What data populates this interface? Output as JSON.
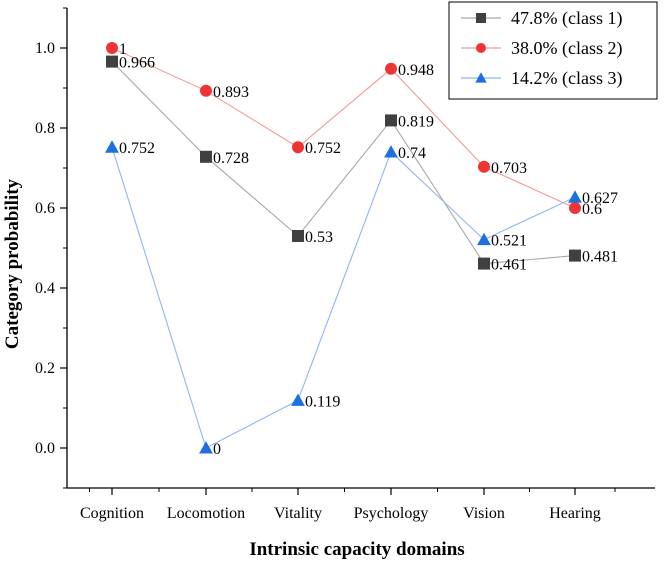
{
  "chart_data": {
    "type": "line",
    "title": "",
    "xlabel": "Intrinsic capacity domains",
    "ylabel": "Category probability",
    "categories": [
      "Cognition",
      "Locomotion",
      "Vitality",
      "Psychology",
      "Vision",
      "Hearing"
    ],
    "ylim": [
      -0.1,
      1.1
    ],
    "yticks": [
      0.0,
      0.2,
      0.4,
      0.6,
      0.8,
      1.0
    ],
    "ytick_labels": [
      "0.0",
      "0.2",
      "0.4",
      "0.6",
      "0.8",
      "1.0"
    ],
    "legend_position": "top-right",
    "grid": false,
    "series": [
      {
        "name": "47.8% (class 1)",
        "marker": "square",
        "color": "#404040",
        "line_color": "#a8a8a8",
        "values": [
          0.966,
          0.728,
          0.53,
          0.819,
          0.461,
          0.481
        ],
        "labels": [
          "0.966",
          "0.728",
          "0.53",
          "0.819",
          "0.461",
          "0.481"
        ]
      },
      {
        "name": "38.0% (class 2)",
        "marker": "circle",
        "color": "#ee3535",
        "line_color": "#f29a9a",
        "values": [
          1,
          0.893,
          0.752,
          0.948,
          0.703,
          0.6
        ],
        "labels": [
          "1",
          "0.893",
          "0.752",
          "0.948",
          "0.703",
          "0.6"
        ]
      },
      {
        "name": "14.2% (class 3)",
        "marker": "triangle",
        "color": "#1f6fe0",
        "line_color": "#8fb6ee",
        "values": [
          0.752,
          0,
          0.119,
          0.74,
          0.521,
          0.627
        ],
        "labels": [
          "0.752",
          "0",
          "0.119",
          "0.74",
          "0.521",
          "0.627"
        ]
      }
    ]
  }
}
